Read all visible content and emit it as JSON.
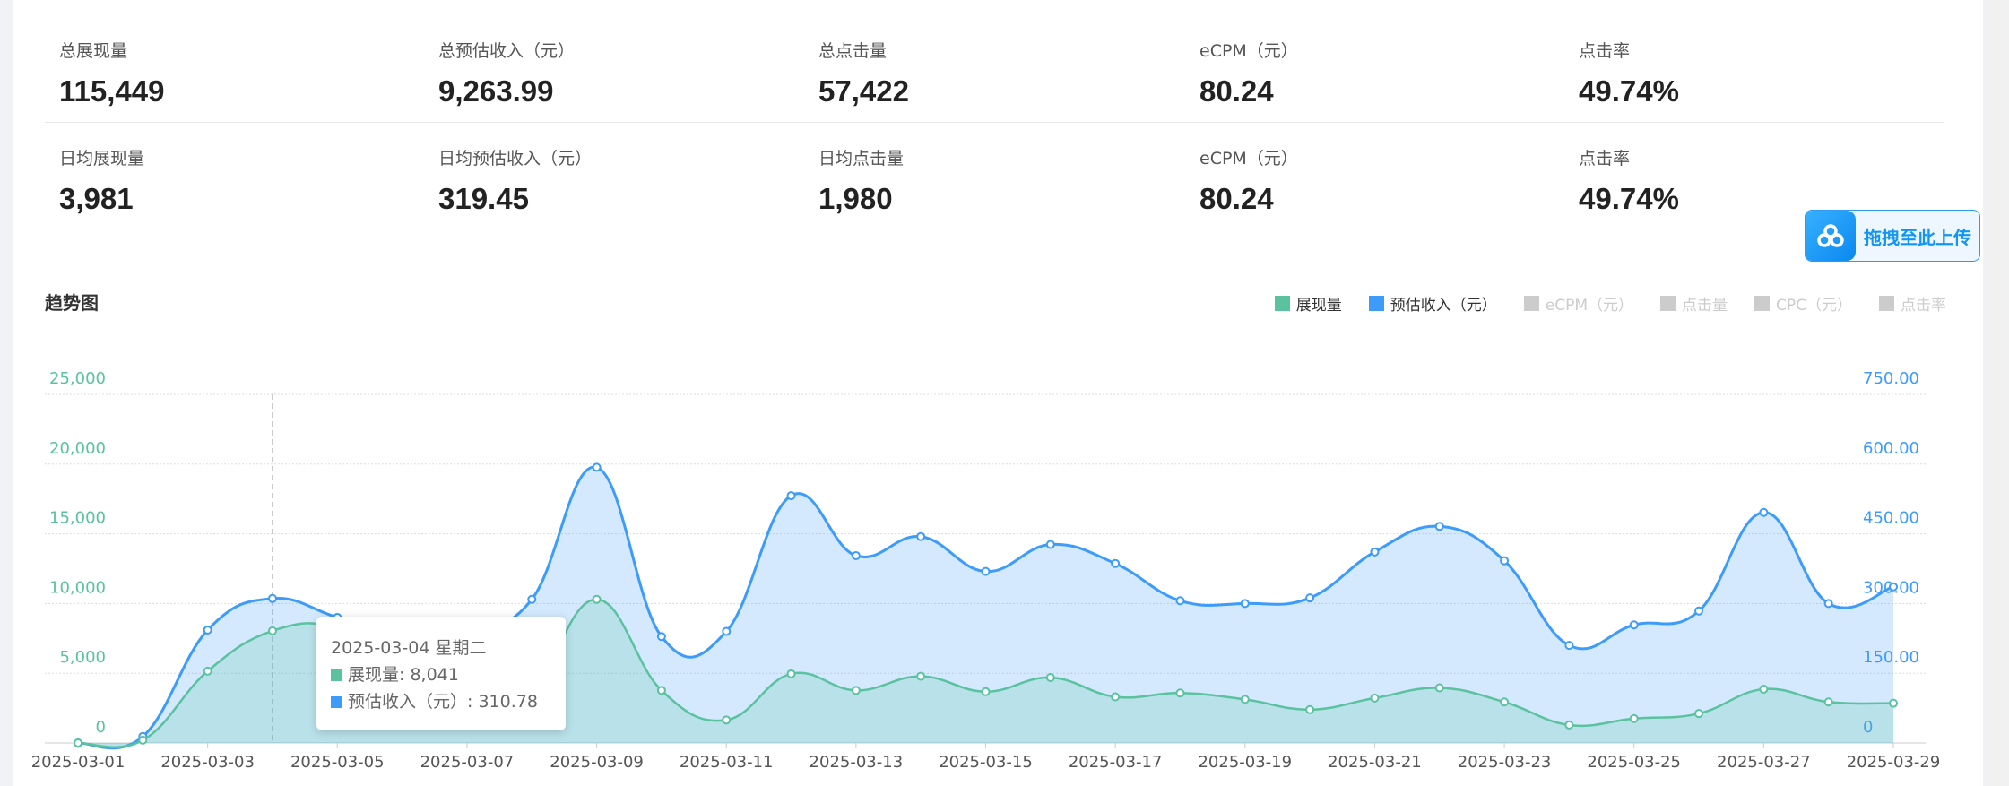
{
  "stats_total": [
    {
      "label": "总展现量",
      "value": "115,449"
    },
    {
      "label": "总预估收入（元）",
      "value": "9,263.99"
    },
    {
      "label": "总点击量",
      "value": "57,422"
    },
    {
      "label": "eCPM（元）",
      "value": "80.24"
    },
    {
      "label": "点击率",
      "value": "49.74%"
    }
  ],
  "stats_daily": [
    {
      "label": "日均展现量",
      "value": "3,981"
    },
    {
      "label": "日均预估收入（元）",
      "value": "319.45"
    },
    {
      "label": "日均点击量",
      "value": "1,980"
    },
    {
      "label": "eCPM（元）",
      "value": "80.24"
    },
    {
      "label": "点击率",
      "value": "49.74%"
    }
  ],
  "upload_button": {
    "label": "拖拽至此上传",
    "icon": "cloud-icon"
  },
  "chart_section": {
    "title": "趋势图"
  },
  "legend": [
    {
      "label": "展现量",
      "color": "#5ac29e",
      "active": true
    },
    {
      "label": "预估收入（元）",
      "color": "#3d9bfa",
      "active": true
    },
    {
      "label": "eCPM（元）",
      "color": "#cccccc",
      "active": false
    },
    {
      "label": "点击量",
      "color": "#cccccc",
      "active": false
    },
    {
      "label": "CPC（元）",
      "color": "#cccccc",
      "active": false
    },
    {
      "label": "点击率",
      "color": "#cccccc",
      "active": false
    }
  ],
  "tooltip": {
    "title": "2025-03-04 星期二",
    "rows": [
      {
        "label": "展现量: 8,041",
        "color": "#5ac29e"
      },
      {
        "label": "预估收入（元）: 310.78",
        "color": "#3d9bfa"
      }
    ]
  },
  "chart_data": {
    "type": "line",
    "smooth": true,
    "area": true,
    "grid": true,
    "legend_position": "top-right",
    "x": [
      "2025-03-01",
      "2025-03-02",
      "2025-03-03",
      "2025-03-04",
      "2025-03-05",
      "2025-03-06",
      "2025-03-07",
      "2025-03-08",
      "2025-03-09",
      "2025-03-10",
      "2025-03-11",
      "2025-03-12",
      "2025-03-13",
      "2025-03-14",
      "2025-03-15",
      "2025-03-16",
      "2025-03-17",
      "2025-03-18",
      "2025-03-19",
      "2025-03-20",
      "2025-03-21",
      "2025-03-22",
      "2025-03-23",
      "2025-03-24",
      "2025-03-25",
      "2025-03-26",
      "2025-03-27",
      "2025-03-28",
      "2025-03-29"
    ],
    "x_tick_labels": [
      "2025-03-01",
      "2025-03-03",
      "2025-03-05",
      "2025-03-07",
      "2025-03-09",
      "2025-03-11",
      "2025-03-13",
      "2025-03-15",
      "2025-03-17",
      "2025-03-19",
      "2025-03-21",
      "2025-03-23",
      "2025-03-25",
      "2025-03-27",
      "2025-03-29"
    ],
    "y_left": {
      "range": [
        0,
        25000
      ],
      "ticks": [
        "0",
        "5,000",
        "10,000",
        "15,000",
        "20,000",
        "25,000"
      ],
      "color": "#5ac29e"
    },
    "y_right": {
      "range": [
        0,
        750
      ],
      "ticks": [
        "0",
        "150.00",
        "300.00",
        "450.00",
        "600.00",
        "750.00"
      ],
      "color": "#3d9bfa"
    },
    "series": [
      {
        "name": "展现量",
        "axis": "left",
        "color": "#5ac29e",
        "values": [
          0,
          200,
          5150,
          8041,
          8200,
          5000,
          2500,
          4000,
          10300,
          3770,
          1650,
          4960,
          3770,
          4780,
          3680,
          4690,
          3310,
          3580,
          3125,
          2390,
          3220,
          3950,
          2940,
          1290,
          1750,
          2110,
          3860,
          2940,
          2850
        ]
      },
      {
        "name": "预估收入（元）",
        "axis": "right",
        "color": "#3d9bfa",
        "values": [
          0,
          14,
          243,
          310.78,
          270,
          230,
          240,
          309,
          593,
          229,
          240,
          532,
          403,
          444,
          369,
          427,
          386,
          306,
          300,
          312,
          411,
          466,
          392,
          210,
          254,
          284,
          496,
          300,
          336
        ]
      }
    ],
    "highlighted_x": "2025-03-04"
  }
}
